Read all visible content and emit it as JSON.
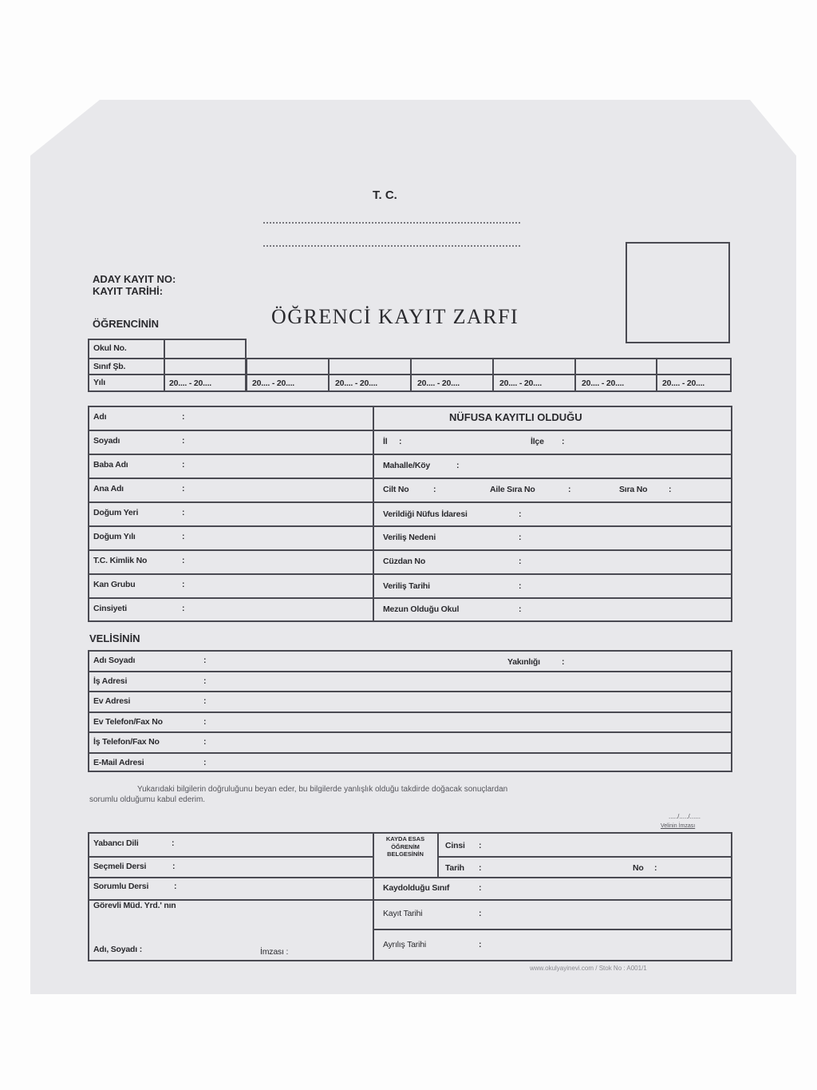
{
  "header": {
    "tc": "T. C.",
    "aday_kayit_no": "ADAY KAYIT NO:",
    "kayit_tarihi": "KAYIT TARİHİ:",
    "ogrencinin": "ÖĞRENCİNİN",
    "title": "ÖĞRENCİ  KAYIT  ZARFI"
  },
  "school_rows": {
    "okul_no": "Okul No.",
    "sinif_sb": "Sınıf Şb.",
    "yili": "Yılı",
    "years": [
      "20.... - 20....",
      "20.... - 20....",
      "20.... - 20....",
      "20.... - 20....",
      "20.... - 20....",
      "20.... - 20....",
      "20.... - 20...."
    ]
  },
  "student_left": [
    "Adı",
    "Soyadı",
    "Baba Adı",
    "Ana Adı",
    "Doğum Yeri",
    "Doğum Yılı",
    "T.C. Kimlik No",
    "Kan Grubu",
    "Cinsiyeti"
  ],
  "nufus": {
    "heading": "NÜFUSA KAYITLI OLDUĞU",
    "il": "İl",
    "ilce": "İlçe",
    "mahalle": "Mahalle/Köy",
    "cilt_no": "Cilt No",
    "aile_sira_no": "Aile Sıra No",
    "sira_no": "Sıra No",
    "verildigi": "Verildiği Nüfus İdaresi",
    "verilis_nedeni": "Veriliş Nedeni",
    "cuzdan_no": "Cüzdan No",
    "verilis_tarihi": "Veriliş Tarihi",
    "mezun_okul": "Mezun Olduğu Okul"
  },
  "veli": {
    "heading": "VELİSİNİN",
    "rows": [
      "Adı Soyadı",
      "İş Adresi",
      "Ev Adresi",
      "Ev Telefon/Fax No",
      "İş Telefon/Fax No",
      "E-Mail Adresi"
    ],
    "yakinligi": "Yakınlığı"
  },
  "statement": {
    "line1": "Yukarıdaki bilgilerin doğruluğunu beyan eder, bu bilgilerde yanlışlık olduğu takdirde doğacak sonuçlardan",
    "line2": "sorumlu olduğumu kabul ederim.",
    "date": "...../...../......",
    "signature": "Velinin İmzası"
  },
  "bottom": {
    "yabanci_dili": "Yabancı Dili",
    "secmeli_dersi": "Seçmeli Dersi",
    "sorumlu_dersi": "Sorumlu Dersi",
    "gorevli": "Görevli Müd. Yrd.' nın",
    "adi_soyadi": "Adı, Soyadı :",
    "imzasi": "İmzası :",
    "kayda_esas": "KAYDA ESAS ÖĞRENİM BELGESİNİN",
    "cinsi": "Cinsi",
    "tarih": "Tarih",
    "no": "No",
    "kaydoldugu_sinif": "Kaydolduğu Sınıf",
    "kayit_tarihi": "Kayıt Tarihi",
    "ayrilis_tarihi": "Ayrılış Tarihi"
  },
  "footer": "www.okulyayinevi.com / Stok No : A001/1"
}
